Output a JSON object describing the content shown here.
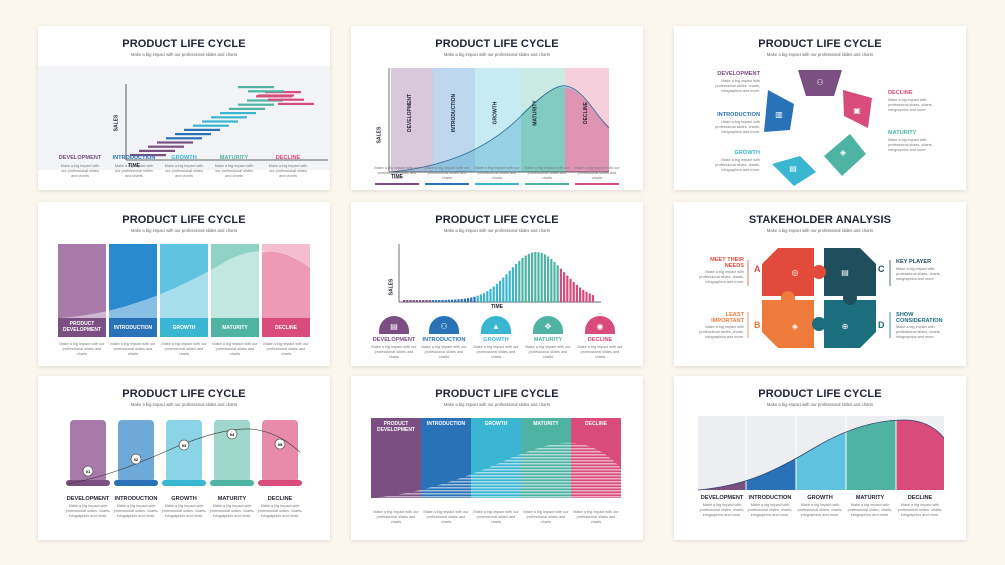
{
  "colors": {
    "purple": "#7b4f82",
    "purple_light": "#a77aa9",
    "blue": "#2a72b8",
    "blue_light": "#6fa9d8",
    "cyan": "#3ab6d3",
    "teal": "#4fb3a4",
    "pink": "#d94b7a",
    "pink_light": "#e88aa9",
    "red": "#e24b3c",
    "orange": "#ee7a3b",
    "dark_teal": "#1b6e7e"
  },
  "plc_stages": [
    "DEVELOPMENT",
    "INTRODUCTION",
    "GROWTH",
    "MATURITY",
    "DECLINE"
  ],
  "plc_stages_product": [
    "PRODUCT DEVELOPMENT",
    "INTRODUCTION",
    "GROWTH",
    "MATURITY",
    "DECLINE"
  ],
  "stage_desc_short": "Make a big impact with our professional slides and charts",
  "stage_desc_long": "Make a big impact with professional slides, charts, infographics and more.",
  "slides": [
    {
      "title": "PRODUCT LIFE CYCLE",
      "subtitle": "Make a big impact with our professional slides and charts",
      "axis_y": "SALES",
      "axis_x": "TIME"
    },
    {
      "title": "PRODUCT LIFE CYCLE",
      "subtitle": "Make a big impact with our professional slides and charts",
      "axis_y": "SALES",
      "axis_x": "TIME"
    },
    {
      "title": "PRODUCT LIFE CYCLE",
      "subtitle": "Make a big impact with our professional slides and charts"
    },
    {
      "title": "PRODUCT LIFE CYCLE",
      "subtitle": "Make a big impact with our professional slides and charts"
    },
    {
      "title": "PRODUCT LIFE CYCLE",
      "subtitle": "Make a big impact with our professional slides and charts",
      "axis_y": "SALES",
      "axis_x": "TIME"
    },
    {
      "title": "STAKEHOLDER ANALYSIS",
      "subtitle": "Make a big impact with our professional slides and charts",
      "quadrants": [
        {
          "letter": "A",
          "label": "MEET THEIR NEEDS"
        },
        {
          "letter": "C",
          "label": "KEY PLAYER"
        },
        {
          "letter": "B",
          "label": "LEAST IMPORTANT"
        },
        {
          "letter": "D",
          "label": "SHOW CONSIDERATION"
        }
      ]
    },
    {
      "title": "PRODUCT LIFE CYCLE",
      "subtitle": "Make a big impact with our professional slides and charts",
      "steps": [
        "01",
        "02",
        "03",
        "04",
        "05"
      ]
    },
    {
      "title": "PRODUCT LIFE CYCLE",
      "subtitle": "Make a big impact with our professional slides and charts"
    },
    {
      "title": "PRODUCT LIFE CYCLE",
      "subtitle": "Make a big impact with our professional slides and charts"
    }
  ]
}
